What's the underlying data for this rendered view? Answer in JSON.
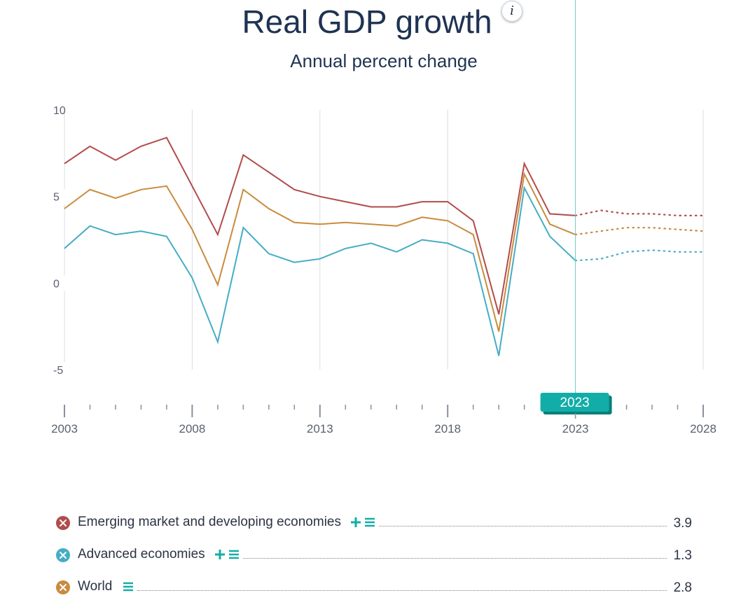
{
  "header": {
    "title": "Real GDP growth",
    "subtitle": "Annual percent change",
    "info_glyph": "i"
  },
  "timeline": {
    "selected_year": "2023"
  },
  "colors": {
    "emde": "#b24b4b",
    "advanced": "#45adc4",
    "world": "#c98b3e",
    "accent": "#13ada8",
    "grid": "#d9dde3"
  },
  "icons": {
    "add": "plus-icon",
    "list": "list-icon",
    "marker": "close-icon",
    "info": "info-icon"
  },
  "legend": [
    {
      "label": "Emerging market and developing economies",
      "value": "3.9",
      "color": "#b24b4b",
      "has_plus": true
    },
    {
      "label": "Advanced economies",
      "value": "1.3",
      "color": "#45adc4",
      "has_plus": true
    },
    {
      "label": "World",
      "value": "2.8",
      "color": "#c98b3e",
      "has_plus": false
    }
  ],
  "chart_data": {
    "type": "line",
    "title": "Real GDP growth",
    "subtitle": "Annual percent change",
    "xlabel": "",
    "ylabel": "",
    "x": [
      2003,
      2004,
      2005,
      2006,
      2007,
      2008,
      2009,
      2010,
      2011,
      2012,
      2013,
      2014,
      2015,
      2016,
      2017,
      2018,
      2019,
      2020,
      2021,
      2022,
      2023,
      2024,
      2025,
      2026,
      2027,
      2028
    ],
    "xlim": [
      2003,
      2028
    ],
    "ylim": [
      -5,
      10
    ],
    "yticks": [
      "10",
      "5",
      "0",
      "-5"
    ],
    "xticks": [
      "2003",
      "2008",
      "2013",
      "2018",
      "2023",
      "2028"
    ],
    "projection_start": 2023,
    "grid": "vertical",
    "series": [
      {
        "name": "Emerging market and developing economies",
        "values": [
          6.9,
          7.9,
          7.1,
          7.9,
          8.4,
          5.6,
          2.8,
          7.4,
          6.4,
          5.4,
          5.0,
          4.7,
          4.4,
          4.4,
          4.7,
          4.7,
          3.6,
          -1.8,
          6.9,
          4.0,
          3.9,
          4.2,
          4.0,
          4.0,
          3.9,
          3.9
        ]
      },
      {
        "name": "Advanced economies",
        "values": [
          2.0,
          3.3,
          2.8,
          3.0,
          2.7,
          0.3,
          -3.4,
          3.2,
          1.7,
          1.2,
          1.4,
          2.0,
          2.3,
          1.8,
          2.5,
          2.3,
          1.7,
          -4.2,
          5.5,
          2.7,
          1.3,
          1.4,
          1.8,
          1.9,
          1.8,
          1.8
        ]
      },
      {
        "name": "World",
        "values": [
          4.3,
          5.4,
          4.9,
          5.4,
          5.6,
          3.1,
          -0.1,
          5.4,
          4.3,
          3.5,
          3.4,
          3.5,
          3.4,
          3.3,
          3.8,
          3.6,
          2.8,
          -2.8,
          6.3,
          3.4,
          2.8,
          3.0,
          3.2,
          3.2,
          3.1,
          3.0
        ]
      }
    ]
  }
}
